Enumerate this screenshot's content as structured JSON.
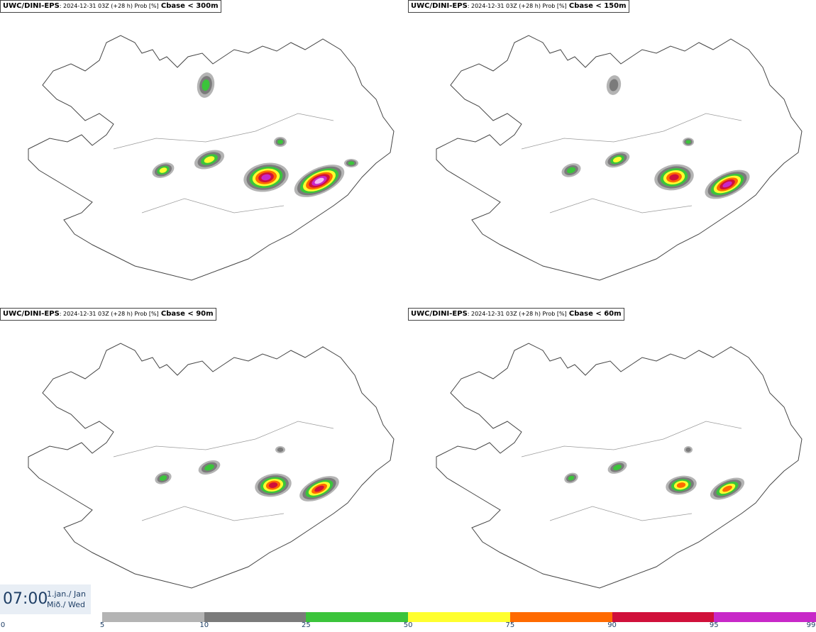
{
  "panels": [
    {
      "model": "UWC/DINI-EPS",
      "meta": ": 2024-12-31 03Z (+28 h) Prob [%]",
      "variable": "Cbase < 300m"
    },
    {
      "model": "UWC/DINI-EPS",
      "meta": ": 2024-12-31 03Z (+28 h) Prob [%]",
      "variable": "Cbase < 150m"
    },
    {
      "model": "UWC/DINI-EPS",
      "meta": ": 2024-12-31 03Z (+28 h) Prob [%]",
      "variable": "Cbase < 90m"
    },
    {
      "model": "UWC/DINI-EPS",
      "meta": ": 2024-12-31 03Z (+28 h) Prob [%]",
      "variable": "Cbase < 60m"
    }
  ],
  "clock": {
    "time": "07:00",
    "date_line1": "1.jan./ Jan",
    "date_line2": "Mið./ Wed"
  },
  "legend": {
    "ticks": [
      "0",
      "5",
      "10",
      "25",
      "50",
      "75",
      "90",
      "95",
      "99"
    ],
    "colors": [
      "#ffffff",
      "#b4b4b4",
      "#7b7b7b",
      "#3bc43b",
      "#ffff2e",
      "#ff6a00",
      "#d0103a",
      "#c828c8",
      "#f4b8f4"
    ]
  }
}
